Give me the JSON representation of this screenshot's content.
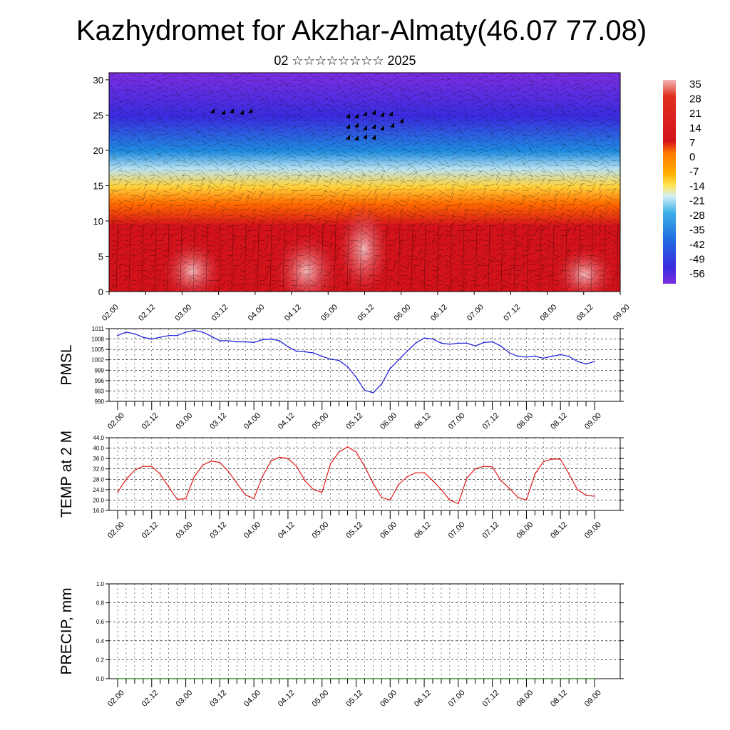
{
  "title": "Kazhydromet for Akzhar-Almaty(46.07 77.08)",
  "subtitle": "02 ☆☆☆☆☆☆☆☆ 2025",
  "time_labels": [
    "02.00",
    "02.12",
    "03.00",
    "03.12",
    "04.00",
    "04.12",
    "05.00",
    "05.12",
    "06.00",
    "06.12",
    "07.00",
    "07.12",
    "08.00",
    "08.12",
    "09.00"
  ],
  "chart_data": [
    {
      "type": "heatmap",
      "name": "temperature-wind-cross-section",
      "y_ticks": [
        "0",
        "5",
        "10",
        "15",
        "20",
        "25",
        "30"
      ],
      "ylim": [
        0,
        31
      ],
      "colorbar_labels": [
        "35",
        "28",
        "21",
        "14",
        "7",
        "0",
        "-7",
        "-14",
        "-21",
        "-28",
        "-35",
        "-42",
        "-49",
        "-56"
      ],
      "colorbar_range": [
        -60,
        37
      ],
      "colors": {
        "hot": "#d4121b",
        "warm": "#ff6a00",
        "mild": "#ffd23a",
        "cool": "#b9e3f0",
        "cold": "#1f8de0",
        "deep": "#3a2bdf",
        "top": "#7a2fe0"
      }
    },
    {
      "type": "line",
      "ylabel": "PMSL",
      "y_ticks": [
        "1011",
        "1008",
        "1005",
        "1002",
        "999",
        "996",
        "993",
        "990"
      ],
      "ylim": [
        990,
        1011
      ],
      "color": "#1a1adc",
      "x": [
        0,
        3,
        6,
        9,
        12,
        15,
        18,
        21,
        24,
        27,
        30,
        33,
        36,
        39,
        42,
        45,
        48,
        51,
        54,
        57,
        60,
        63,
        66,
        69,
        72,
        75,
        78,
        81,
        84,
        87,
        90,
        93,
        96,
        99,
        102,
        105,
        108,
        111,
        114,
        117,
        120,
        123,
        126,
        129,
        132,
        135,
        138,
        141,
        144,
        147,
        150,
        153,
        156,
        159,
        162,
        165,
        168
      ],
      "values": [
        1009,
        1010,
        1009.5,
        1008.5,
        1008,
        1008.5,
        1009,
        1009,
        1010,
        1010.5,
        1010,
        1008.8,
        1007.5,
        1007.5,
        1007.2,
        1007.2,
        1007,
        1007.8,
        1008,
        1007.5,
        1005.8,
        1004.5,
        1004.3,
        1004,
        1003,
        1002.2,
        1001.8,
        1000,
        997,
        993.2,
        992.5,
        995,
        999.5,
        1002,
        1004.5,
        1006.8,
        1008.3,
        1008,
        1006.8,
        1006.5,
        1006.8,
        1006.8,
        1006,
        1007,
        1007.2,
        1006,
        1004,
        1003,
        1002.8,
        1003,
        1002.5,
        1003,
        1003.5,
        1003,
        1001.5,
        1000.8,
        1001.5
      ]
    },
    {
      "type": "line",
      "ylabel": "TEMP at 2 M",
      "y_ticks": [
        "44.0",
        "40.0",
        "36.0",
        "32.0",
        "28.0",
        "24.0",
        "20.0",
        "16.0"
      ],
      "ylim": [
        16,
        44
      ],
      "color": "#e01b1b",
      "x": [
        0,
        3,
        6,
        9,
        12,
        15,
        18,
        21,
        24,
        27,
        30,
        33,
        36,
        39,
        42,
        45,
        48,
        51,
        54,
        57,
        60,
        63,
        66,
        69,
        72,
        75,
        78,
        81,
        84,
        87,
        90,
        93,
        96,
        99,
        102,
        105,
        108,
        111,
        114,
        117,
        120,
        123,
        126,
        129,
        132,
        135,
        138,
        141,
        144,
        147,
        150,
        153,
        156,
        159,
        162,
        165,
        168
      ],
      "values": [
        23,
        28,
        31.5,
        33,
        33,
        30,
        25,
        20.3,
        20.5,
        29,
        33.5,
        35,
        34.5,
        31,
        26.5,
        22,
        20.5,
        29,
        35,
        36.5,
        36,
        33,
        27.5,
        24,
        23,
        34,
        38.5,
        40.5,
        38.5,
        33,
        26.5,
        21,
        20,
        26,
        29,
        30.5,
        30.5,
        27.5,
        24,
        20,
        18.6,
        28.5,
        32,
        33,
        32.8,
        27.5,
        24.5,
        21,
        20,
        30,
        34.8,
        35.8,
        35.7,
        30,
        24,
        21.8,
        21.5
      ]
    },
    {
      "type": "line",
      "ylabel": "PRECIP, mm",
      "y_ticks": [
        "1.0",
        "0.8",
        "0.6",
        "0.4",
        "0.2",
        "0.0"
      ],
      "ylim": [
        0,
        1
      ],
      "color": "#1b7a1b",
      "x": [
        0,
        168
      ],
      "values": [
        0,
        0
      ]
    }
  ]
}
